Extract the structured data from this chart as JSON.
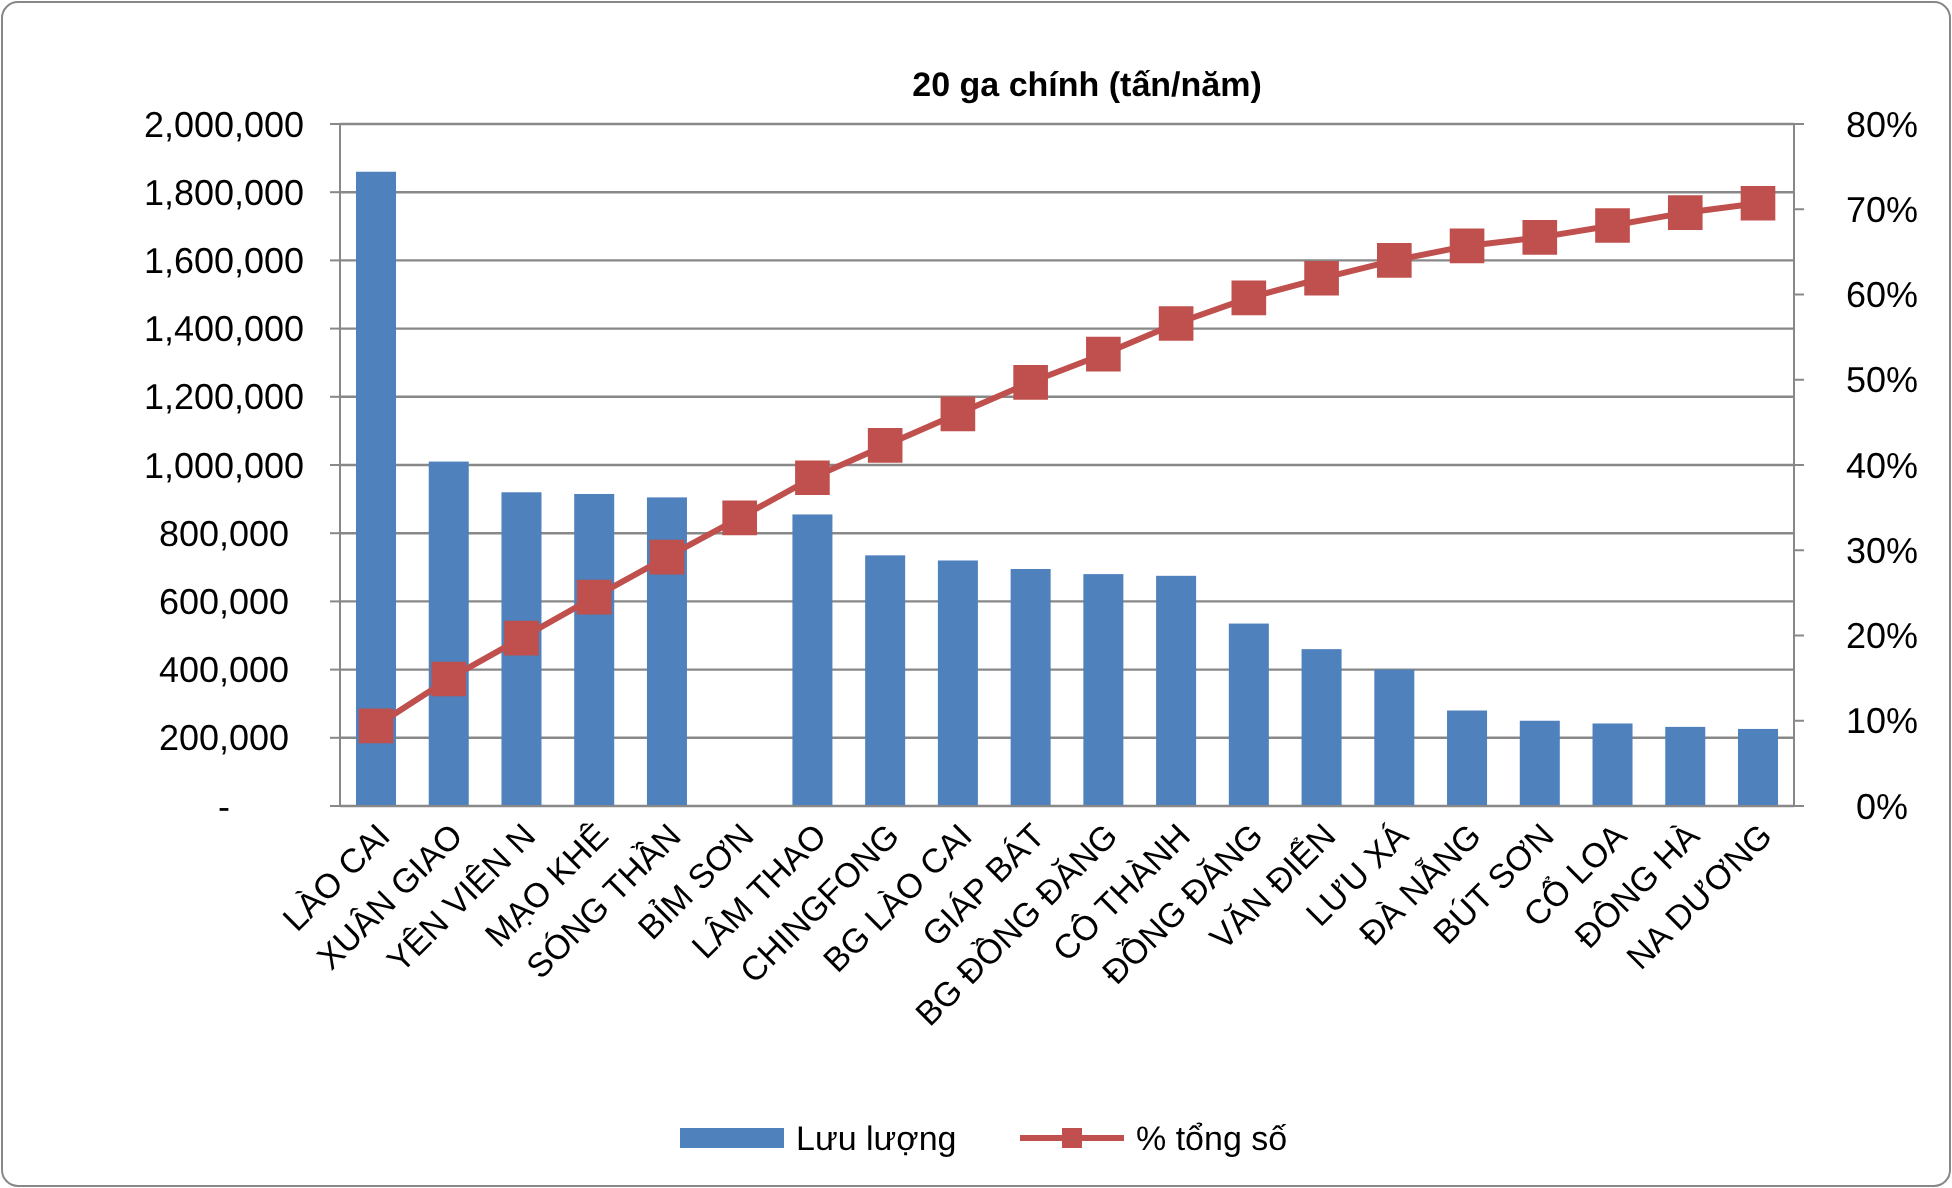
{
  "chart_data": {
    "type": "bar",
    "title": "20 ga chính (tấn/năm)",
    "categories": [
      "LÀO CAI",
      "XUÂN GIAO",
      "YÊN VIÊN N",
      "MẠO KHÊ",
      "SÓNG THẦN",
      "BỈM SƠN",
      "LÂM THAO",
      "CHINGFONG",
      "BG LÀO CAI",
      "GIÁP BÁT",
      "BG ĐỒNG ĐĂNG",
      "CÔ THÀNH",
      "ĐỒNG ĐĂNG",
      "VĂN ĐIỂN",
      "LƯU XÁ",
      "ĐÀ NẴNG",
      "BÚT SƠN",
      "CỔ LOA",
      "ĐÔNG HÀ",
      "NA DƯƠNG"
    ],
    "series": [
      {
        "name": "Lưu lượng",
        "color": "#4f81bd",
        "values": [
          1860000,
          1010000,
          920000,
          915000,
          905000,
          null,
          855000,
          735000,
          720000,
          695000,
          680000,
          675000,
          535000,
          460000,
          400000,
          280000,
          250000,
          242000,
          232000,
          226000
        ]
      },
      {
        "name": "% tổng số",
        "type": "line",
        "axis": "y2",
        "color": "#c0504d",
        "marker": "square",
        "values": [
          9.4,
          14.9,
          19.7,
          24.5,
          29.2,
          33.8,
          38.5,
          42.3,
          46,
          49.7,
          53,
          56.6,
          59.6,
          61.9,
          64,
          65.7,
          66.7,
          68.1,
          69.6,
          70.7
        ]
      }
    ],
    "ylim": [
      0,
      2000000
    ],
    "yticks": [
      {
        "value": 0,
        "label": "-"
      },
      {
        "value": 200000,
        "label": "200,000"
      },
      {
        "value": 400000,
        "label": "400,000"
      },
      {
        "value": 600000,
        "label": "600,000"
      },
      {
        "value": 800000,
        "label": "800,000"
      },
      {
        "value": 1000000,
        "label": "1,000,000"
      },
      {
        "value": 1200000,
        "label": "1,200,000"
      },
      {
        "value": 1400000,
        "label": "1,400,000"
      },
      {
        "value": 1600000,
        "label": "1,600,000"
      },
      {
        "value": 1800000,
        "label": "1,800,000"
      },
      {
        "value": 2000000,
        "label": "2,000,000"
      }
    ],
    "y2lim": [
      0,
      80
    ],
    "y2ticks": [
      {
        "value": 0,
        "label": "0%"
      },
      {
        "value": 10,
        "label": "10%"
      },
      {
        "value": 20,
        "label": "20%"
      },
      {
        "value": 30,
        "label": "30%"
      },
      {
        "value": 40,
        "label": "40%"
      },
      {
        "value": 50,
        "label": "50%"
      },
      {
        "value": 60,
        "label": "60%"
      },
      {
        "value": 70,
        "label": "70%"
      },
      {
        "value": 80,
        "label": "80%"
      }
    ],
    "grid": "y",
    "legend": "bottom"
  }
}
